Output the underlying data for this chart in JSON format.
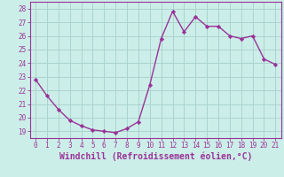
{
  "x": [
    0,
    1,
    2,
    3,
    4,
    5,
    6,
    7,
    8,
    9,
    10,
    11,
    12,
    13,
    14,
    15,
    16,
    17,
    18,
    19,
    20,
    21
  ],
  "y": [
    22.8,
    21.6,
    20.6,
    19.8,
    19.4,
    19.1,
    19.0,
    18.9,
    19.2,
    19.7,
    22.4,
    25.8,
    27.8,
    26.3,
    27.4,
    26.7,
    26.7,
    26.0,
    25.8,
    26.0,
    24.3,
    23.9
  ],
  "line_color": "#993399",
  "marker": "D",
  "markersize": 2.2,
  "linewidth": 1.0,
  "xlabel": "Windchill (Refroidissement éolien,°C)",
  "xlabel_fontsize": 7,
  "ylabel_ticks": [
    19,
    20,
    21,
    22,
    23,
    24,
    25,
    26,
    27,
    28
  ],
  "xtick_labels": [
    "0",
    "1",
    "2",
    "3",
    "4",
    "5",
    "6",
    "7",
    "8",
    "9",
    "10",
    "11",
    "12",
    "13",
    "14",
    "15",
    "16",
    "17",
    "18",
    "19",
    "20",
    "21"
  ],
  "tick_fontsize": 5.5,
  "ylim": [
    18.5,
    28.5
  ],
  "xlim": [
    -0.5,
    21.5
  ],
  "bg_color": "#cceee8",
  "grid_color": "#aad4ce",
  "tick_color": "#993399",
  "spine_color": "#993399"
}
